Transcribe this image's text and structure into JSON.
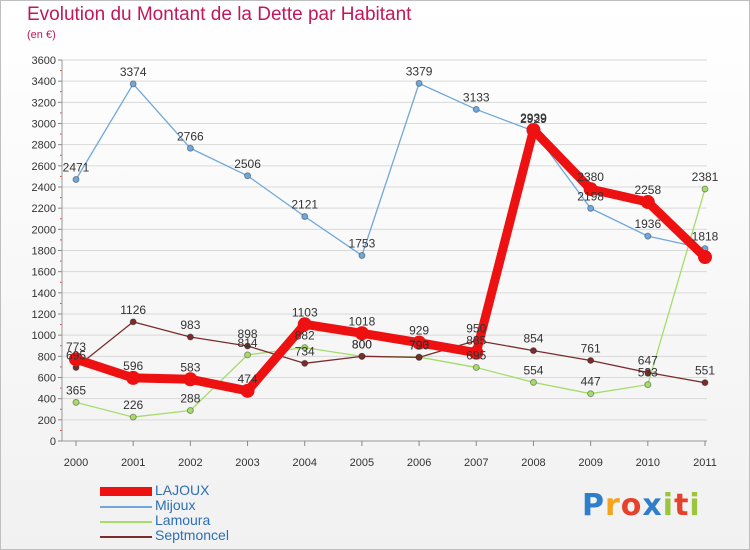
{
  "title": "Evolution du Montant de la Dette par Habitant",
  "subtitle": "(en €)",
  "brand": {
    "letters": [
      "P",
      "r",
      "o",
      "x",
      "i",
      "t",
      "i"
    ],
    "colors": [
      "#2f7ecb",
      "#f7a21b",
      "#e8412b",
      "#2f7ecb",
      "#9bc53d",
      "#e8412b",
      "#9bc53d"
    ]
  },
  "chart_data": {
    "type": "line",
    "categories": [
      "2000",
      "2001",
      "2002",
      "2003",
      "2004",
      "2005",
      "2006",
      "2007",
      "2008",
      "2009",
      "2010",
      "2011"
    ],
    "ylim": [
      0,
      3600
    ],
    "yticks": [
      "0",
      "200",
      "400",
      "600",
      "800",
      "1000",
      "1200",
      "1400",
      "1600",
      "1800",
      "2000",
      "2200",
      "2400",
      "2600",
      "2800",
      "3000",
      "3200",
      "3400",
      "3600"
    ],
    "grid": "horizontal",
    "legend_position": "bottom-left",
    "series": [
      {
        "name": "LAJOUX",
        "color": "#ee1111",
        "emphasis": true,
        "values": [
          773,
          596,
          583,
          474,
          1103,
          1018,
          929,
          835,
          2939,
          2380,
          2258,
          1738
        ],
        "labels": [
          "773",
          "596",
          "583",
          "474",
          "1103",
          "1018",
          "929",
          "835",
          "2939",
          "2380",
          "2258",
          ""
        ]
      },
      {
        "name": "Mijoux",
        "color": "#6fa8dc",
        "values": [
          2471,
          3374,
          2766,
          2506,
          2121,
          1753,
          3379,
          3133,
          2929,
          2198,
          1936,
          1818
        ],
        "labels": [
          "2471",
          "3374",
          "2766",
          "2506",
          "2121",
          "1753",
          "3379",
          "3133",
          "2929",
          "2198",
          "1936",
          "1818"
        ]
      },
      {
        "name": "Lamoura",
        "color": "#a5dc6a",
        "values": [
          365,
          226,
          288,
          814,
          882,
          800,
          793,
          695,
          554,
          447,
          533,
          2381
        ],
        "labels": [
          "365",
          "226",
          "288",
          "814",
          "882",
          "800",
          "793",
          "695",
          "554",
          "447",
          "533",
          "2381"
        ]
      },
      {
        "name": "Septmoncel",
        "color": "#7b2d2d",
        "values": [
          695,
          1126,
          983,
          898,
          734,
          800,
          790,
          950,
          854,
          761,
          647,
          551
        ],
        "labels": [
          "695",
          "1126",
          "983",
          "898",
          "734",
          "800",
          "790",
          "950",
          "854",
          "761",
          "647",
          "551"
        ]
      }
    ]
  }
}
